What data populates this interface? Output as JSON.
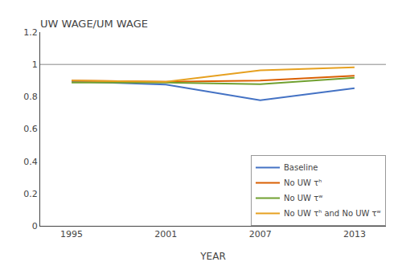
{
  "chart_data": {
    "type": "line",
    "title": "UW WAGE/UM WAGE",
    "xlabel": "YEAR",
    "x": [
      1995,
      2001,
      2007,
      2013
    ],
    "series": [
      {
        "name": "Baseline",
        "color": "#4472C4",
        "values": [
          0.895,
          0.875,
          0.778,
          0.853
        ]
      },
      {
        "name": "No UW τʰ",
        "color": "#D95F02",
        "values": [
          0.9,
          0.893,
          0.9,
          0.93
        ]
      },
      {
        "name": "No UW τʷ",
        "color": "#70A030",
        "values": [
          0.888,
          0.888,
          0.878,
          0.918
        ]
      },
      {
        "name": "No UW τʰ and No UW τʷ",
        "color": "#E6A020",
        "values": [
          0.9,
          0.893,
          0.963,
          0.982
        ]
      }
    ],
    "reference_line": {
      "y": 1.0,
      "color": "#B0B0B0"
    },
    "xlim": [
      1993,
      2015
    ],
    "ylim": [
      0,
      1.2
    ],
    "xticks": [
      1995,
      2001,
      2007,
      2013
    ],
    "yticks": [
      0,
      0.2,
      0.4,
      0.6,
      0.8,
      1,
      1.2
    ],
    "grid": false,
    "legend": "lower right"
  }
}
